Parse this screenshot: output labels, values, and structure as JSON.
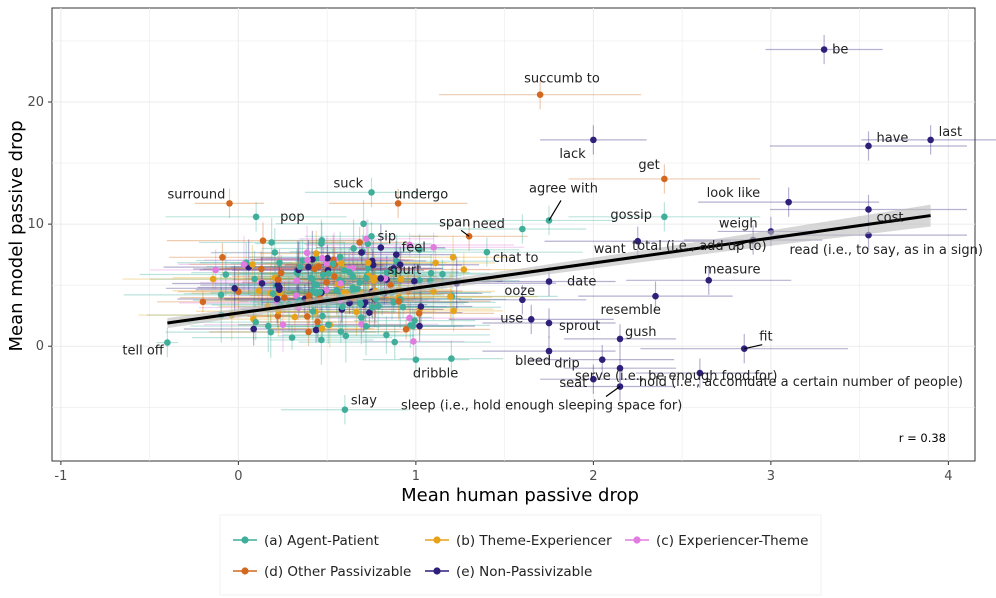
{
  "colors": {
    "agent_patient": "#3fae9b",
    "theme_experiencer": "#e6a31a",
    "experiencer_theme": "#e27be0",
    "other_passivizable": "#d2691e",
    "non_passivizable": "#2d1f7a",
    "grid": "#ebebeb",
    "ci_band": "#bdbdbd"
  },
  "chart_data": {
    "type": "scatter",
    "title": "",
    "xlabel": "Mean human passive drop",
    "ylabel": "Mean model passive drop",
    "xlim": [
      -1.05,
      4.15
    ],
    "ylim": [
      -9.4,
      27.7
    ],
    "xticks": [
      -1,
      0,
      1,
      2,
      3,
      4
    ],
    "yticks": [
      0,
      10,
      20
    ],
    "correlation_label": "r =  0.38",
    "regression_line": {
      "x_start": -0.4,
      "x_end": 3.9,
      "y_at_start": 1.9,
      "y_at_end": 10.7
    },
    "legend": {
      "row1": [
        {
          "key": "a",
          "label": "(a) Agent-Patient",
          "color_key": "agent_patient"
        },
        {
          "key": "b",
          "label": "(b) Theme-Experiencer",
          "color_key": "theme_experiencer"
        },
        {
          "key": "c",
          "label": "(c) Experiencer-Theme",
          "color_key": "experiencer_theme"
        }
      ],
      "row2": [
        {
          "key": "d",
          "label": "(d) Other Passivizable",
          "color_key": "other_passivizable"
        },
        {
          "key": "e",
          "label": "(e) Non-Passivizable",
          "color_key": "non_passivizable"
        }
      ]
    },
    "labeled_points": [
      {
        "label": "be",
        "x": 3.3,
        "y": 24.3,
        "cat": "e"
      },
      {
        "label": "succumb to",
        "x": 1.7,
        "y": 20.6,
        "cat": "d"
      },
      {
        "label": "lack",
        "x": 2.0,
        "y": 16.9,
        "cat": "e"
      },
      {
        "label": "have",
        "x": 3.55,
        "y": 16.4,
        "cat": "e"
      },
      {
        "label": "last",
        "x": 3.9,
        "y": 16.9,
        "cat": "e"
      },
      {
        "label": "get",
        "x": 2.4,
        "y": 13.7,
        "cat": "d"
      },
      {
        "label": "look like",
        "x": 3.1,
        "y": 11.8,
        "cat": "e"
      },
      {
        "label": "surround",
        "x": -0.05,
        "y": 11.7,
        "cat": "d"
      },
      {
        "label": "suck",
        "x": 0.75,
        "y": 12.6,
        "cat": "a"
      },
      {
        "label": "undergo",
        "x": 0.9,
        "y": 11.7,
        "cat": "d"
      },
      {
        "label": "agree with",
        "x": 1.75,
        "y": 10.3,
        "cat": "a"
      },
      {
        "label": "gossip",
        "x": 2.4,
        "y": 10.6,
        "cat": "a"
      },
      {
        "label": "weigh",
        "x": 3.0,
        "y": 9.4,
        "cat": "e"
      },
      {
        "label": "cost",
        "x": 3.55,
        "y": 11.2,
        "cat": "e"
      },
      {
        "label": "pop",
        "x": 0.1,
        "y": 10.6,
        "cat": "a"
      },
      {
        "label": "sip",
        "x": 0.75,
        "y": 9.0,
        "cat": "a"
      },
      {
        "label": "span",
        "x": 1.3,
        "y": 9.0,
        "cat": "d"
      },
      {
        "label": "need",
        "x": 1.6,
        "y": 9.6,
        "cat": "a"
      },
      {
        "label": "feel",
        "x": 1.1,
        "y": 8.1,
        "cat": "c"
      },
      {
        "label": "chat to",
        "x": 1.4,
        "y": 7.7,
        "cat": "a"
      },
      {
        "label": "want",
        "x": 2.25,
        "y": 8.6,
        "cat": "e"
      },
      {
        "label": "total (i.e., add up to)",
        "x": 2.9,
        "y": 8.7,
        "cat": "e"
      },
      {
        "label": "read (i.e., to say, as in a sign)",
        "x": 3.55,
        "y": 9.1,
        "cat": "e"
      },
      {
        "label": "spurt",
        "x": 1.15,
        "y": 5.9,
        "cat": "a"
      },
      {
        "label": "date",
        "x": 1.75,
        "y": 5.3,
        "cat": "e"
      },
      {
        "label": "measure",
        "x": 2.65,
        "y": 5.4,
        "cat": "e"
      },
      {
        "label": "ooze",
        "x": 1.6,
        "y": 3.8,
        "cat": "e"
      },
      {
        "label": "resemble",
        "x": 2.35,
        "y": 4.1,
        "cat": "e"
      },
      {
        "label": "use",
        "x": 1.65,
        "y": 2.2,
        "cat": "e"
      },
      {
        "label": "sprout",
        "x": 1.75,
        "y": 1.9,
        "cat": "e"
      },
      {
        "label": "gush",
        "x": 2.15,
        "y": 0.6,
        "cat": "e"
      },
      {
        "label": "tell off",
        "x": -0.4,
        "y": 0.3,
        "cat": "a"
      },
      {
        "label": "fit",
        "x": 2.85,
        "y": -0.2,
        "cat": "e"
      },
      {
        "label": "bleed",
        "x": 1.75,
        "y": -0.4,
        "cat": "e"
      },
      {
        "label": "drip",
        "x": 2.05,
        "y": -1.1,
        "cat": "e"
      },
      {
        "label": "dribble",
        "x": 1.0,
        "y": -1.1,
        "cat": "a"
      },
      {
        "label": "serve (i.e., be enough food for)",
        "x": 2.15,
        "y": -1.8,
        "cat": "e"
      },
      {
        "label": "seat",
        "x": 2.0,
        "y": -2.7,
        "cat": "e"
      },
      {
        "label": "hold (i.e., accomdate a certain number of people)",
        "x": 2.6,
        "y": -2.2,
        "cat": "e"
      },
      {
        "label": "sleep (i.e., hold enough sleeping space for)",
        "x": 2.15,
        "y": -3.3,
        "cat": "e"
      },
      {
        "label": "slay",
        "x": 0.6,
        "y": -5.2,
        "cat": "a"
      }
    ]
  }
}
